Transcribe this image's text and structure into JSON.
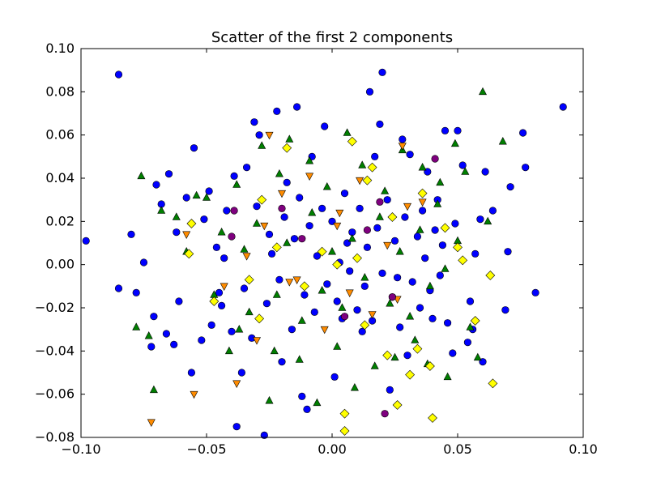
{
  "chart_data": {
    "type": "scatter",
    "title": "Scatter of the first 2 components",
    "xlabel": "",
    "ylabel": "",
    "xlim": [
      -0.1,
      0.1
    ],
    "ylim": [
      -0.08,
      0.1
    ],
    "grid": false,
    "legend": "none",
    "x_ticks": [
      -0.1,
      -0.05,
      0.0,
      0.05,
      0.1
    ],
    "x_tick_labels": [
      "−0.10",
      "−0.05",
      "0.00",
      "0.05",
      "0.10"
    ],
    "y_ticks": [
      -0.08,
      -0.06,
      -0.04,
      -0.02,
      0.0,
      0.02,
      0.04,
      0.06,
      0.08,
      0.1
    ],
    "y_tick_labels": [
      "−0.08",
      "−0.06",
      "−0.04",
      "−0.02",
      "0.00",
      "0.02",
      "0.04",
      "0.06",
      "0.08",
      "0.10"
    ],
    "series": [
      {
        "marker": "circle",
        "color": "#0000ff",
        "points": [
          [
            -0.085,
            0.088
          ],
          [
            0.02,
            0.089
          ],
          [
            0.092,
            0.073
          ],
          [
            0.015,
            0.08
          ],
          [
            -0.098,
            0.011
          ],
          [
            -0.085,
            -0.011
          ],
          [
            -0.08,
            0.014
          ],
          [
            -0.078,
            -0.013
          ],
          [
            -0.075,
            0.001
          ],
          [
            -0.07,
            0.037
          ],
          [
            -0.068,
            0.028
          ],
          [
            -0.065,
            0.042
          ],
          [
            -0.072,
            -0.038
          ],
          [
            -0.071,
            -0.024
          ],
          [
            -0.066,
            -0.032
          ],
          [
            -0.063,
            -0.037
          ],
          [
            -0.062,
            0.015
          ],
          [
            -0.061,
            -0.017
          ],
          [
            -0.058,
            0.031
          ],
          [
            -0.056,
            -0.05
          ],
          [
            -0.055,
            0.054
          ],
          [
            -0.051,
            0.021
          ],
          [
            -0.048,
            -0.028
          ],
          [
            -0.046,
            0.008
          ],
          [
            -0.044,
            -0.019
          ],
          [
            -0.042,
            0.025
          ],
          [
            -0.04,
            -0.031
          ],
          [
            -0.038,
            -0.075
          ],
          [
            -0.036,
            -0.05
          ],
          [
            -0.034,
            0.045
          ],
          [
            -0.031,
            0.066
          ],
          [
            -0.029,
            0.06
          ],
          [
            -0.027,
            -0.079
          ],
          [
            -0.025,
            0.014
          ],
          [
            -0.022,
            0.071
          ],
          [
            -0.02,
            -0.045
          ],
          [
            -0.018,
            0.038
          ],
          [
            -0.014,
            0.073
          ],
          [
            -0.012,
            -0.061
          ],
          [
            -0.01,
            -0.067
          ],
          [
            -0.008,
            0.05
          ],
          [
            -0.003,
            0.064
          ],
          [
            0.001,
            -0.052
          ],
          [
            0.004,
            -0.025
          ],
          [
            0.006,
            0.01
          ],
          [
            0.012,
            -0.031
          ],
          [
            0.017,
            0.05
          ],
          [
            0.019,
            0.065
          ],
          [
            0.023,
            -0.058
          ],
          [
            0.026,
            -0.006
          ],
          [
            0.028,
            0.058
          ],
          [
            0.03,
            -0.042
          ],
          [
            0.031,
            0.051
          ],
          [
            0.036,
            0.025
          ],
          [
            0.038,
            0.043
          ],
          [
            0.039,
            -0.012
          ],
          [
            0.042,
            0.03
          ],
          [
            0.045,
            0.062
          ],
          [
            0.046,
            -0.027
          ],
          [
            0.049,
            0.019
          ],
          [
            0.05,
            0.062
          ],
          [
            0.052,
            0.046
          ],
          [
            0.054,
            -0.036
          ],
          [
            0.056,
            -0.03
          ],
          [
            0.059,
            0.021
          ],
          [
            0.061,
            0.043
          ],
          [
            0.064,
            0.025
          ],
          [
            0.069,
            -0.021
          ],
          [
            0.07,
            0.006
          ],
          [
            0.071,
            0.036
          ],
          [
            0.076,
            0.061
          ],
          [
            0.077,
            0.045
          ],
          [
            0.081,
            -0.013
          ],
          [
            0.06,
            -0.045
          ],
          [
            0.055,
            -0.017
          ],
          [
            0.057,
            0.005
          ],
          [
            0.048,
            -0.041
          ],
          [
            -0.052,
            -0.035
          ],
          [
            -0.049,
            0.034
          ],
          [
            -0.045,
            -0.013
          ],
          [
            -0.043,
            0.003
          ],
          [
            -0.039,
            0.041
          ],
          [
            -0.035,
            -0.011
          ],
          [
            -0.032,
            -0.034
          ],
          [
            -0.03,
            0.027
          ],
          [
            -0.026,
            -0.018
          ],
          [
            -0.024,
            0.005
          ],
          [
            -0.021,
            -0.007
          ],
          [
            -0.019,
            0.022
          ],
          [
            -0.016,
            -0.03
          ],
          [
            -0.015,
            0.012
          ],
          [
            -0.013,
            0.031
          ],
          [
            -0.011,
            -0.014
          ],
          [
            -0.009,
            0.018
          ],
          [
            -0.007,
            -0.022
          ],
          [
            -0.006,
            0.004
          ],
          [
            -0.004,
            0.026
          ],
          [
            -0.002,
            -0.009
          ],
          [
            0.0,
            0.02
          ],
          [
            0.002,
            -0.017
          ],
          [
            0.003,
            0.001
          ],
          [
            0.005,
            0.033
          ],
          [
            0.007,
            -0.003
          ],
          [
            0.008,
            0.015
          ],
          [
            0.01,
            -0.021
          ],
          [
            0.011,
            0.026
          ],
          [
            0.013,
            -0.01
          ],
          [
            0.014,
            0.008
          ],
          [
            0.016,
            -0.026
          ],
          [
            0.018,
            0.017
          ],
          [
            0.02,
            -0.004
          ],
          [
            0.022,
            0.03
          ],
          [
            0.024,
            -0.015
          ],
          [
            0.025,
            0.011
          ],
          [
            0.027,
            -0.029
          ],
          [
            0.029,
            0.022
          ],
          [
            0.032,
            -0.008
          ],
          [
            0.034,
            0.013
          ],
          [
            0.035,
            -0.02
          ],
          [
            0.037,
            0.003
          ],
          [
            0.04,
            -0.025
          ],
          [
            0.041,
            0.016
          ],
          [
            0.043,
            -0.005
          ],
          [
            0.044,
            0.009
          ]
        ]
      },
      {
        "marker": "triangle-up",
        "color": "#007f00",
        "points": [
          [
            0.06,
            0.08
          ],
          [
            -0.078,
            -0.029
          ],
          [
            -0.076,
            0.041
          ],
          [
            -0.073,
            -0.033
          ],
          [
            -0.071,
            -0.058
          ],
          [
            -0.068,
            0.025
          ],
          [
            -0.062,
            0.022
          ],
          [
            -0.058,
            0.006
          ],
          [
            -0.054,
            0.032
          ],
          [
            -0.05,
            0.031
          ],
          [
            -0.047,
            -0.014
          ],
          [
            -0.044,
            0.015
          ],
          [
            -0.041,
            -0.04
          ],
          [
            -0.038,
            0.037
          ],
          [
            -0.035,
            0.007
          ],
          [
            -0.033,
            -0.022
          ],
          [
            -0.028,
            0.055
          ],
          [
            -0.025,
            -0.063
          ],
          [
            -0.023,
            -0.04
          ],
          [
            -0.021,
            0.042
          ],
          [
            -0.017,
            0.058
          ],
          [
            -0.013,
            -0.044
          ],
          [
            -0.009,
            0.048
          ],
          [
            -0.006,
            -0.064
          ],
          [
            -0.002,
            0.036
          ],
          [
            0.002,
            -0.038
          ],
          [
            0.006,
            0.061
          ],
          [
            0.009,
            -0.057
          ],
          [
            0.012,
            0.046
          ],
          [
            0.017,
            -0.047
          ],
          [
            0.021,
            0.034
          ],
          [
            0.025,
            -0.043
          ],
          [
            0.028,
            0.053
          ],
          [
            0.033,
            -0.035
          ],
          [
            0.036,
            0.045
          ],
          [
            0.038,
            -0.046
          ],
          [
            0.043,
            0.038
          ],
          [
            0.046,
            -0.052
          ],
          [
            0.049,
            0.056
          ],
          [
            0.053,
            0.043
          ],
          [
            0.055,
            -0.029
          ],
          [
            0.058,
            -0.043
          ],
          [
            0.062,
            0.02
          ],
          [
            0.068,
            0.057
          ],
          [
            -0.037,
            -0.03
          ],
          [
            -0.03,
            0.019
          ],
          [
            -0.022,
            -0.014
          ],
          [
            -0.018,
            0.01
          ],
          [
            -0.012,
            -0.026
          ],
          [
            -0.008,
            0.024
          ],
          [
            -0.004,
            -0.012
          ],
          [
            0.0,
            0.006
          ],
          [
            0.004,
            -0.02
          ],
          [
            0.008,
            0.012
          ],
          [
            0.013,
            -0.006
          ],
          [
            0.019,
            0.022
          ],
          [
            0.023,
            -0.018
          ],
          [
            0.027,
            0.006
          ],
          [
            0.031,
            -0.024
          ],
          [
            0.035,
            0.016
          ],
          [
            0.039,
            -0.01
          ],
          [
            0.042,
            0.028
          ],
          [
            0.045,
            -0.002
          ],
          [
            0.05,
            0.011
          ]
        ]
      },
      {
        "marker": "triangle-down",
        "color": "#ff8c00",
        "points": [
          [
            -0.025,
            0.06
          ],
          [
            0.028,
            0.055
          ],
          [
            -0.055,
            -0.06
          ],
          [
            -0.072,
            -0.073
          ],
          [
            -0.038,
            -0.055
          ],
          [
            -0.058,
            0.014
          ],
          [
            -0.043,
            -0.01
          ],
          [
            -0.034,
            0.004
          ],
          [
            -0.027,
            0.018
          ],
          [
            -0.02,
            0.033
          ],
          [
            -0.014,
            -0.007
          ],
          [
            -0.009,
            0.041
          ],
          [
            -0.003,
            -0.03
          ],
          [
            0.003,
            0.024
          ],
          [
            0.007,
            -0.013
          ],
          [
            0.011,
            0.039
          ],
          [
            0.016,
            -0.023
          ],
          [
            0.022,
            0.009
          ],
          [
            0.026,
            -0.016
          ],
          [
            0.03,
            0.027
          ],
          [
            0.036,
            0.029
          ],
          [
            -0.03,
            -0.035
          ],
          [
            0.002,
            0.018
          ],
          [
            -0.017,
            -0.008
          ]
        ]
      },
      {
        "marker": "circle",
        "color": "#7f007f",
        "points": [
          [
            -0.039,
            0.025
          ],
          [
            -0.04,
            0.013
          ],
          [
            0.019,
            0.029
          ],
          [
            0.041,
            0.049
          ],
          [
            -0.02,
            0.026
          ],
          [
            0.005,
            -0.024
          ],
          [
            0.021,
            -0.069
          ],
          [
            -0.012,
            0.012
          ],
          [
            0.014,
            0.016
          ],
          [
            0.024,
            -0.015
          ]
        ]
      },
      {
        "marker": "diamond",
        "color": "#ffff00",
        "points": [
          [
            -0.018,
            0.054
          ],
          [
            0.008,
            0.057
          ],
          [
            0.016,
            0.045
          ],
          [
            0.014,
            0.039
          ],
          [
            0.036,
            0.033
          ],
          [
            -0.056,
            0.019
          ],
          [
            -0.028,
            0.03
          ],
          [
            -0.057,
            0.005
          ],
          [
            -0.047,
            -0.017
          ],
          [
            0.05,
            0.008
          ],
          [
            0.052,
            0.002
          ],
          [
            0.063,
            -0.005
          ],
          [
            -0.033,
            -0.007
          ],
          [
            -0.011,
            -0.01
          ],
          [
            0.024,
            0.022
          ],
          [
            -0.029,
            -0.025
          ],
          [
            0.057,
            -0.026
          ],
          [
            0.022,
            -0.042
          ],
          [
            0.034,
            -0.039
          ],
          [
            0.039,
            -0.047
          ],
          [
            0.031,
            -0.051
          ],
          [
            0.064,
            -0.055
          ],
          [
            0.026,
            -0.065
          ],
          [
            0.04,
            -0.071
          ],
          [
            0.005,
            -0.069
          ],
          [
            0.005,
            -0.077
          ],
          [
            -0.004,
            0.006
          ],
          [
            0.002,
            0.0
          ],
          [
            0.01,
            0.003
          ],
          [
            0.013,
            -0.028
          ],
          [
            0.045,
            0.017
          ],
          [
            -0.022,
            0.008
          ]
        ]
      }
    ]
  }
}
